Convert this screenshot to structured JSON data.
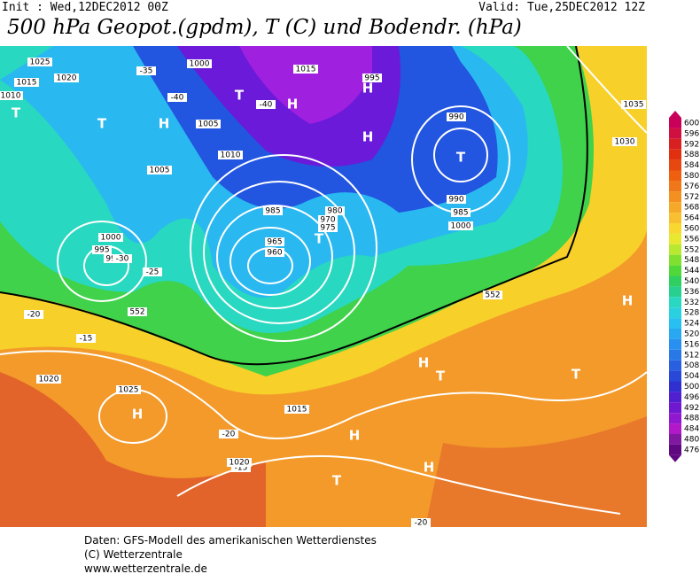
{
  "header": {
    "init": "Init : Wed,12DEC2012 00Z",
    "valid": "Valid: Tue,25DEC2012 12Z",
    "title": "500 hPa Geopot.(gpdm), T (C) und Bodendr. (hPa)"
  },
  "legend": {
    "values": [
      600,
      596,
      592,
      588,
      584,
      580,
      576,
      572,
      568,
      564,
      560,
      556,
      552,
      548,
      544,
      540,
      536,
      532,
      528,
      524,
      520,
      516,
      512,
      508,
      504,
      500,
      496,
      492,
      488,
      484,
      480,
      476
    ]
  },
  "map": {
    "labels": [
      "1025",
      "1020",
      "1015",
      "1010",
      "T",
      "T",
      "H",
      "1000",
      "-35",
      "-40",
      "1005",
      "1015",
      "H",
      "H",
      "T",
      "-40",
      "1010",
      "1005",
      "1000",
      "995",
      "990",
      "985",
      "980",
      "975",
      "970",
      "965",
      "960",
      "T",
      "-30",
      "-25",
      "990",
      "985",
      "T",
      "H",
      "1030",
      "1035",
      "H",
      "-20",
      "-15",
      "1020",
      "1025",
      "H",
      "1015",
      "H",
      "T",
      "-20",
      "-15",
      "1020",
      "H",
      "T",
      "H",
      "T",
      "-20",
      "552",
      "552",
      "1000",
      "995",
      "990"
    ]
  },
  "footer": {
    "lines": [
      "Daten: GFS-Modell des amerikanischen Wetterdienstes",
      "(C) Wetterzentrale",
      "www.wetterzentrale.de"
    ]
  }
}
